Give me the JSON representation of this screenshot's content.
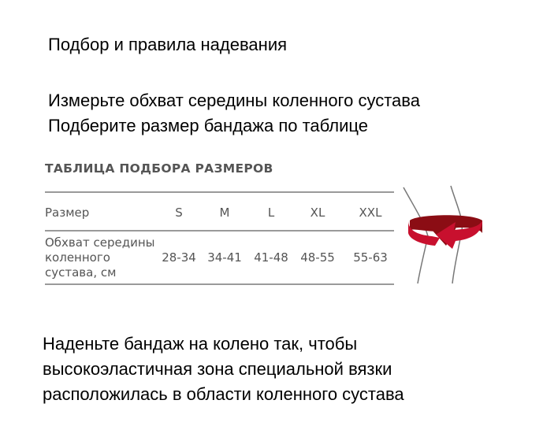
{
  "heading": "Подбор и правила надевания",
  "instructions": [
    "Измерьте обхват середины коленного сустава",
    "Подберите размер бандажа по таблице"
  ],
  "size_table": {
    "title": "ТАБЛИЦА ПОДБОРА РАЗМЕРОВ",
    "header_label": "Размер",
    "sizes": [
      "S",
      "M",
      "L",
      "XL",
      "XXL"
    ],
    "row_label_lines": [
      "Обхват середины",
      "коленного",
      "сустава, см"
    ],
    "ranges": [
      "28-34",
      "34-41",
      "41-48",
      "48-55",
      "55-63"
    ]
  },
  "illustration": {
    "icon": "knee-measure-arrow-icon",
    "accent_color": "#c8102e"
  },
  "wearing_instructions": [
    "Наденьте бандаж на колено так, чтобы",
    "высокоэластичная зона специальной вязки",
    "расположилась в области коленного сустава"
  ]
}
